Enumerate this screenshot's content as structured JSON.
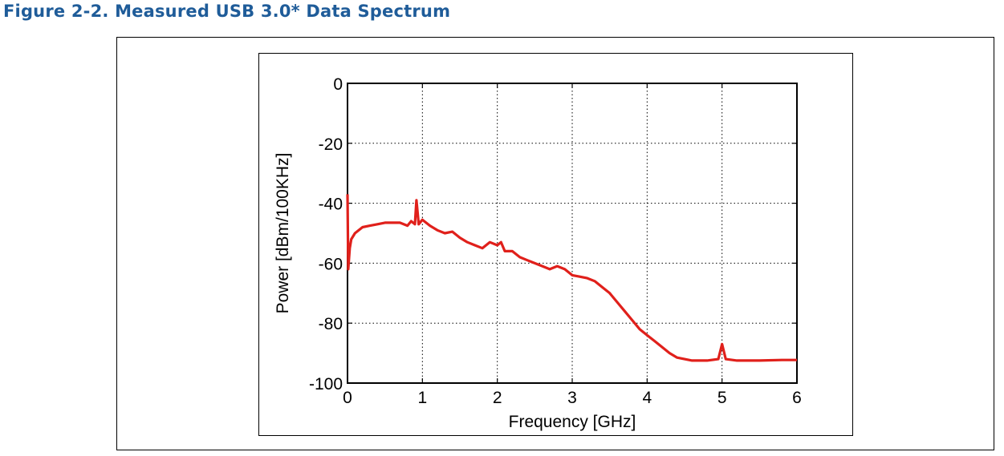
{
  "caption": "Figure 2-2. Measured USB 3.0* Data Spectrum",
  "colors": {
    "caption": "#1f5c99",
    "series": "#e0201b"
  },
  "chart_data": {
    "type": "line",
    "title": "",
    "xlabel": "Frequency [GHz]",
    "ylabel": "Power [dBm/100KHz]",
    "xlim": [
      0,
      6
    ],
    "ylim": [
      -100,
      0
    ],
    "xticks": [
      0,
      1,
      2,
      3,
      4,
      5,
      6
    ],
    "yticks": [
      0,
      -20,
      -40,
      -60,
      -80,
      -100
    ],
    "grid": true,
    "legend": "none",
    "series": [
      {
        "x": [
          0,
          0.01,
          0.03,
          0.05,
          0.1,
          0.2,
          0.3,
          0.4,
          0.5,
          0.6,
          0.7,
          0.8,
          0.85,
          0.9,
          0.92,
          0.95,
          1.0,
          1.1,
          1.2,
          1.3,
          1.4,
          1.5,
          1.6,
          1.7,
          1.8,
          1.9,
          2.0,
          2.05,
          2.1,
          2.2,
          2.3,
          2.4,
          2.5,
          2.6,
          2.7,
          2.8,
          2.9,
          3.0,
          3.1,
          3.2,
          3.3,
          3.4,
          3.5,
          3.6,
          3.7,
          3.8,
          3.9,
          4.0,
          4.1,
          4.2,
          4.3,
          4.4,
          4.5,
          4.6,
          4.8,
          4.95,
          5.0,
          5.05,
          5.2,
          5.5,
          5.8,
          6.0
        ],
        "y": [
          -37,
          -62,
          -55,
          -52,
          -50,
          -48,
          -47.5,
          -47,
          -46.5,
          -46.5,
          -46.5,
          -47.5,
          -46,
          -47,
          -39,
          -47,
          -45.5,
          -47.5,
          -49,
          -50,
          -49.5,
          -51.5,
          -53,
          -54,
          -55,
          -53,
          -54,
          -53,
          -56,
          -56,
          -58,
          -59,
          -60,
          -61,
          -62,
          -61,
          -62,
          -64,
          -64.5,
          -65,
          -66,
          -68,
          -70,
          -73,
          -76,
          -79,
          -82,
          -84,
          -86,
          -88,
          -90,
          -91.5,
          -92,
          -92.5,
          -92.5,
          -92,
          -87,
          -92,
          -92.5,
          -92.5,
          -92.3,
          -92.3
        ]
      }
    ]
  }
}
